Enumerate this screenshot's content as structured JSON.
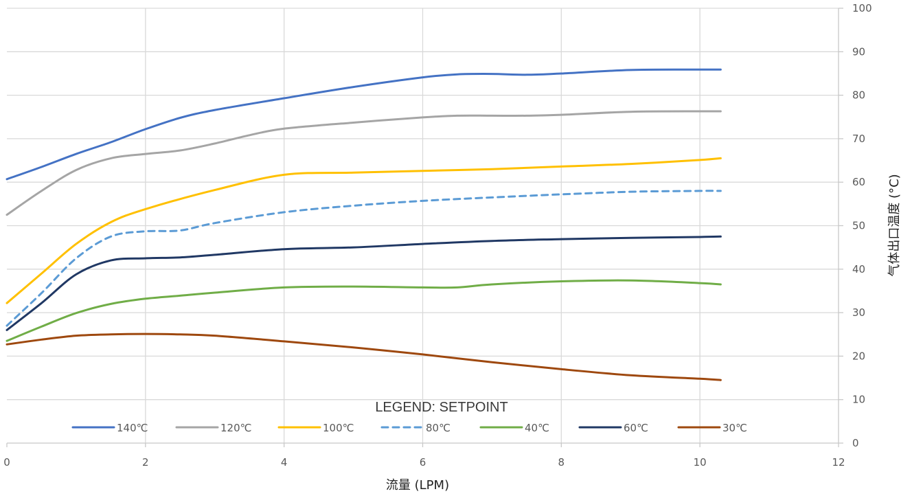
{
  "chart_data": {
    "type": "line",
    "title": "",
    "xlabel": "流量 (LPM)",
    "ylabel": "气体出口温度 (°C)",
    "xlim": [
      0,
      12
    ],
    "ylim": [
      0,
      100
    ],
    "x_ticks": [
      "0",
      "2",
      "4",
      "6",
      "8",
      "10",
      "12"
    ],
    "y_ticks": [
      "0",
      "10",
      "20",
      "30",
      "40",
      "50",
      "60",
      "70",
      "80",
      "90",
      "100"
    ],
    "y_axis_side": "right",
    "grid": true,
    "legend": {
      "title": "LEGEND: SETPOINT",
      "position": "bottom-center"
    },
    "series": [
      {
        "name": "140℃",
        "color": "#4472c4",
        "dash": false,
        "x": [
          0,
          0.5,
          1,
          1.5,
          2,
          2.5,
          3,
          4,
          5,
          6,
          6.5,
          7,
          7.5,
          8,
          9,
          10,
          10.3
        ],
        "y": [
          60.7,
          63.5,
          66.5,
          69.2,
          72.2,
          74.8,
          76.6,
          79.3,
          81.9,
          84.1,
          84.8,
          84.9,
          84.7,
          85.0,
          85.8,
          85.9,
          85.9
        ]
      },
      {
        "name": "120℃",
        "color": "#a5a5a5",
        "dash": false,
        "x": [
          0,
          0.5,
          1,
          1.5,
          2,
          2.5,
          3,
          3.5,
          4,
          5,
          6,
          6.5,
          7,
          7.5,
          8,
          9,
          10,
          10.3
        ],
        "y": [
          52.5,
          58.0,
          62.8,
          65.5,
          66.5,
          67.3,
          68.9,
          70.8,
          72.3,
          73.7,
          74.9,
          75.3,
          75.3,
          75.3,
          75.5,
          76.2,
          76.3,
          76.3
        ]
      },
      {
        "name": "100℃",
        "color": "#ffc000",
        "dash": false,
        "x": [
          0,
          0.5,
          1,
          1.5,
          2,
          3,
          4,
          5,
          6,
          7,
          8,
          9,
          10,
          10.3
        ],
        "y": [
          32.2,
          39.0,
          45.8,
          50.8,
          53.8,
          58.2,
          61.7,
          62.2,
          62.6,
          63.0,
          63.6,
          64.2,
          65.1,
          65.5
        ]
      },
      {
        "name": "80℃",
        "color": "#5b9bd5",
        "dash": true,
        "x": [
          0,
          0.5,
          1,
          1.5,
          2,
          2.5,
          3,
          4,
          5,
          6,
          7,
          8,
          9,
          10,
          10.3
        ],
        "y": [
          27.0,
          34.5,
          42.5,
          47.5,
          48.7,
          48.9,
          50.6,
          53.1,
          54.6,
          55.7,
          56.5,
          57.2,
          57.8,
          58.0,
          58.0
        ]
      },
      {
        "name": "40℃",
        "color": "#70ad47",
        "dash": false,
        "x": [
          0,
          0.5,
          1,
          1.5,
          2,
          2.5,
          3,
          4,
          5,
          6,
          6.5,
          7,
          8,
          9,
          10,
          10.3
        ],
        "y": [
          23.5,
          26.8,
          29.9,
          32.0,
          33.2,
          33.9,
          34.6,
          35.8,
          36.0,
          35.8,
          35.8,
          36.5,
          37.2,
          37.4,
          36.8,
          36.5
        ]
      },
      {
        "name": "60℃",
        "color": "#203864",
        "dash": false,
        "x": [
          0,
          0.5,
          1,
          1.5,
          2,
          2.5,
          3,
          4,
          5,
          6,
          7,
          8,
          9,
          10,
          10.3
        ],
        "y": [
          26.0,
          32.2,
          38.8,
          42.0,
          42.5,
          42.7,
          43.3,
          44.6,
          45.0,
          45.8,
          46.5,
          46.9,
          47.2,
          47.4,
          47.5
        ]
      },
      {
        "name": "30℃",
        "color": "#9e480e",
        "dash": false,
        "x": [
          0,
          0.5,
          1,
          1.5,
          2,
          2.5,
          3,
          4,
          5,
          6,
          7,
          8,
          9,
          10,
          10.3
        ],
        "y": [
          22.7,
          23.8,
          24.7,
          25.0,
          25.1,
          25.0,
          24.7,
          23.4,
          22.0,
          20.4,
          18.6,
          17.0,
          15.6,
          14.8,
          14.5
        ]
      }
    ],
    "legend_order": [
      "140℃",
      "120℃",
      "100℃",
      "80℃",
      "40℃",
      "60℃",
      "30℃"
    ]
  }
}
